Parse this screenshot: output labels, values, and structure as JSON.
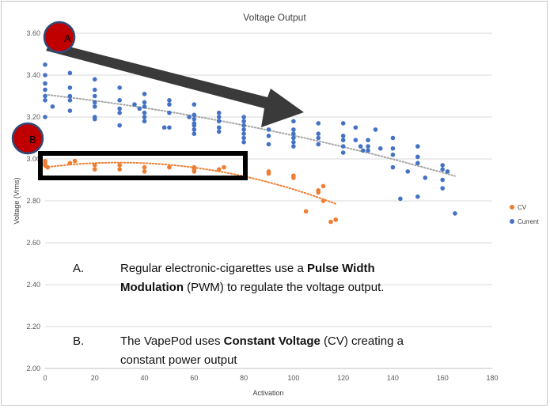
{
  "chart_data": {
    "type": "scatter",
    "title": "Voltage Output",
    "xlabel": "Activation",
    "ylabel": "Voltage (Vrms)",
    "xlim": [
      0,
      180
    ],
    "ylim": [
      2.0,
      3.6
    ],
    "x_ticks": [
      "0",
      "20",
      "40",
      "60",
      "80",
      "100",
      "120",
      "140",
      "160",
      "180"
    ],
    "y_ticks": [
      "2.00",
      "2.20",
      "2.40",
      "2.60",
      "2.80",
      "3.00",
      "3.20",
      "3.40",
      "3.60"
    ],
    "grid": "horizontal",
    "legend_position": "right",
    "series": [
      {
        "name": "CV",
        "color": "#ed7d31",
        "trendline": "polynomial",
        "points": [
          [
            0,
            2.99
          ],
          [
            0,
            2.98
          ],
          [
            0,
            2.97
          ],
          [
            1,
            2.96
          ],
          [
            10,
            2.98
          ],
          [
            12,
            2.99
          ],
          [
            20,
            2.97
          ],
          [
            20,
            2.95
          ],
          [
            30,
            2.97
          ],
          [
            30,
            2.95
          ],
          [
            40,
            2.96
          ],
          [
            40,
            2.94
          ],
          [
            50,
            2.96
          ],
          [
            60,
            2.96
          ],
          [
            60,
            2.95
          ],
          [
            60,
            2.94
          ],
          [
            70,
            2.95
          ],
          [
            72,
            2.96
          ],
          [
            90,
            2.94
          ],
          [
            90,
            2.93
          ],
          [
            100,
            2.92
          ],
          [
            100,
            2.91
          ],
          [
            105,
            2.75
          ],
          [
            110,
            2.85
          ],
          [
            110,
            2.84
          ],
          [
            112,
            2.87
          ],
          [
            112,
            2.8
          ],
          [
            115,
            2.7
          ],
          [
            117,
            2.71
          ]
        ]
      },
      {
        "name": "Current",
        "color": "#4472c4",
        "trendline": "polynomial",
        "points": [
          [
            0,
            3.45
          ],
          [
            0,
            3.4
          ],
          [
            0,
            3.36
          ],
          [
            0,
            3.33
          ],
          [
            0,
            3.3
          ],
          [
            0,
            3.28
          ],
          [
            0,
            3.2
          ],
          [
            3,
            3.25
          ],
          [
            10,
            3.41
          ],
          [
            10,
            3.34
          ],
          [
            10,
            3.3
          ],
          [
            10,
            3.28
          ],
          [
            10,
            3.23
          ],
          [
            20,
            3.38
          ],
          [
            20,
            3.33
          ],
          [
            20,
            3.3
          ],
          [
            20,
            3.27
          ],
          [
            20,
            3.25
          ],
          [
            20,
            3.2
          ],
          [
            20,
            3.19
          ],
          [
            30,
            3.34
          ],
          [
            30,
            3.28
          ],
          [
            30,
            3.24
          ],
          [
            30,
            3.22
          ],
          [
            30,
            3.16
          ],
          [
            36,
            3.26
          ],
          [
            38,
            3.24
          ],
          [
            40,
            3.31
          ],
          [
            40,
            3.27
          ],
          [
            40,
            3.25
          ],
          [
            40,
            3.22
          ],
          [
            40,
            3.2
          ],
          [
            40,
            3.18
          ],
          [
            48,
            3.15
          ],
          [
            50,
            3.28
          ],
          [
            50,
            3.26
          ],
          [
            50,
            3.22
          ],
          [
            50,
            3.15
          ],
          [
            58,
            3.2
          ],
          [
            60,
            3.26
          ],
          [
            60,
            3.21
          ],
          [
            60,
            3.19
          ],
          [
            60,
            3.17
          ],
          [
            60,
            3.16
          ],
          [
            60,
            3.14
          ],
          [
            60,
            3.12
          ],
          [
            70,
            3.22
          ],
          [
            70,
            3.2
          ],
          [
            70,
            3.18
          ],
          [
            70,
            3.15
          ],
          [
            70,
            3.13
          ],
          [
            80,
            3.2
          ],
          [
            80,
            3.18
          ],
          [
            80,
            3.16
          ],
          [
            80,
            3.14
          ],
          [
            80,
            3.12
          ],
          [
            80,
            3.1
          ],
          [
            80,
            3.08
          ],
          [
            90,
            3.19
          ],
          [
            90,
            3.14
          ],
          [
            90,
            3.11
          ],
          [
            90,
            3.07
          ],
          [
            100,
            3.18
          ],
          [
            100,
            3.14
          ],
          [
            100,
            3.12
          ],
          [
            100,
            3.1
          ],
          [
            100,
            3.08
          ],
          [
            100,
            3.06
          ],
          [
            110,
            3.17
          ],
          [
            110,
            3.12
          ],
          [
            110,
            3.1
          ],
          [
            110,
            3.07
          ],
          [
            120,
            3.17
          ],
          [
            120,
            3.11
          ],
          [
            120,
            3.09
          ],
          [
            120,
            3.06
          ],
          [
            120,
            3.03
          ],
          [
            125,
            3.15
          ],
          [
            125,
            3.09
          ],
          [
            127,
            3.06
          ],
          [
            128,
            3.04
          ],
          [
            130,
            3.09
          ],
          [
            130,
            3.06
          ],
          [
            130,
            3.04
          ],
          [
            133,
            3.14
          ],
          [
            135,
            3.05
          ],
          [
            140,
            3.1
          ],
          [
            140,
            3.05
          ],
          [
            140,
            3.02
          ],
          [
            140,
            2.96
          ],
          [
            143,
            2.81
          ],
          [
            146,
            2.94
          ],
          [
            150,
            3.06
          ],
          [
            150,
            3.01
          ],
          [
            150,
            2.98
          ],
          [
            150,
            2.82
          ],
          [
            153,
            2.91
          ],
          [
            160,
            2.97
          ],
          [
            160,
            2.95
          ],
          [
            160,
            2.9
          ],
          [
            160,
            2.86
          ],
          [
            162,
            2.94
          ],
          [
            165,
            2.74
          ]
        ]
      }
    ]
  },
  "overlay": {
    "marker_a": "A",
    "marker_b": "B",
    "arrow_color": "#3a3a3a",
    "marker_color": "#c00000"
  },
  "notes": {
    "a_letter": "A.",
    "a_pre": "Regular electronic-cigarettes use a ",
    "a_bold": "Pulse Width Modulation",
    "a_post": " (PWM) to regulate the voltage output.",
    "b_letter": "B.",
    "b_pre": "The VapePod uses ",
    "b_bold": "Constant Voltage",
    "b_post": " (CV) creating a constant power output"
  }
}
